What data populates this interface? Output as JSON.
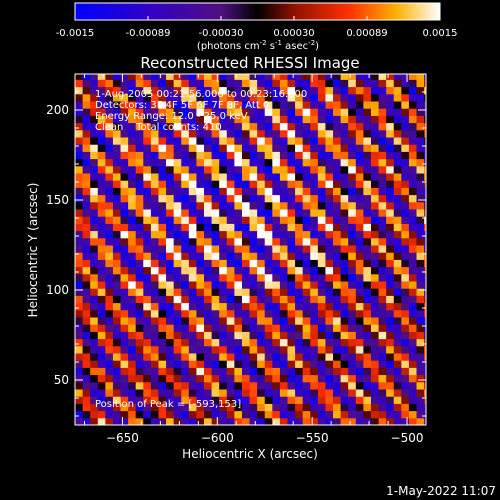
{
  "chart_data": {
    "type": "heatmap",
    "title": "Reconstructed RHESSI Image",
    "xlabel": "Heliocentric X (arcsec)",
    "ylabel": "Heliocentric Y (arcsec)",
    "xlim": [
      -675,
      -490
    ],
    "ylim": [
      25,
      220
    ],
    "xticks": [
      -650,
      -600,
      -550,
      -500
    ],
    "yticks": [
      50,
      100,
      150,
      200
    ],
    "colorbar": {
      "range": [
        -0.0015,
        0.0015
      ],
      "ticks": [
        "-0.0015",
        "-0.00089",
        "-0.00030",
        "0.00030",
        "0.00089",
        "0.0015"
      ],
      "unit_label": "(photons cm",
      "unit_sup1": "-2",
      "unit_mid": " s",
      "unit_sup2": "-1",
      "unit_mid2": " asec",
      "unit_sup3": "-2",
      "unit_end": ")"
    },
    "annotations": [
      "1-Aug-2005 00:21:56.000 to 00:23:16.000",
      "Detectors: 3F 4F 5F 6F 7F 8F, Att 0",
      "Energy Range: 12.0 - 25.0 keV",
      "Clean    Total counts: 410"
    ],
    "peak_label": "Position of Peak = [-593,153]",
    "peak": [
      -593,
      153
    ],
    "grid": false
  },
  "footer": {
    "date": "1-May-2022 11:07"
  }
}
